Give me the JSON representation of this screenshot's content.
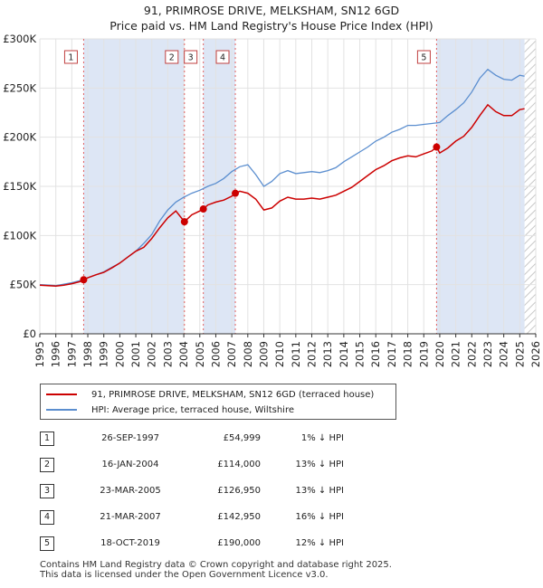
{
  "title_line1": "91, PRIMROSE DRIVE, MELKSHAM, SN12 6GD",
  "title_line2": "Price paid vs. HM Land Registry's House Price Index (HPI)",
  "legend": {
    "property_label": "91, PRIMROSE DRIVE, MELKSHAM, SN12 6GD (terraced house)",
    "hpi_label": "HPI: Average price, terraced house, Wiltshire"
  },
  "colors": {
    "property": "#cc0000",
    "hpi": "#5b8ecf",
    "shade": "#dde6f5",
    "marker_line": "#e06060",
    "hatch": "#c8c8c8"
  },
  "sales": [
    {
      "num": "1",
      "date": "26-SEP-1997",
      "price": "£54,999",
      "hpi": "1% ↓ HPI"
    },
    {
      "num": "2",
      "date": "16-JAN-2004",
      "price": "£114,000",
      "hpi": "13% ↓ HPI"
    },
    {
      "num": "3",
      "date": "23-MAR-2005",
      "price": "£126,950",
      "hpi": "13% ↓ HPI"
    },
    {
      "num": "4",
      "date": "21-MAR-2007",
      "price": "£142,950",
      "hpi": "16% ↓ HPI"
    },
    {
      "num": "5",
      "date": "18-OCT-2019",
      "price": "£190,000",
      "hpi": "12% ↓ HPI"
    }
  ],
  "footer_line1": "Contains HM Land Registry data © Crown copyright and database right 2025.",
  "footer_line2": "This data is licensed under the Open Government Licence v3.0.",
  "chart_data": {
    "type": "line",
    "title": "Price paid vs. HM Land Registry's House Price Index (HPI)",
    "xlim": [
      1995,
      2026
    ],
    "ylim": [
      0,
      300000
    ],
    "x_ticks": [
      1995,
      1996,
      1997,
      1998,
      1999,
      2000,
      2001,
      2002,
      2003,
      2004,
      2005,
      2006,
      2007,
      2008,
      2009,
      2010,
      2011,
      2012,
      2013,
      2014,
      2015,
      2016,
      2017,
      2018,
      2019,
      2020,
      2021,
      2022,
      2023,
      2024,
      2025,
      2026
    ],
    "y_ticks": [
      {
        "value": 0,
        "label": "£0"
      },
      {
        "value": 50000,
        "label": "£50K"
      },
      {
        "value": 100000,
        "label": "£100K"
      },
      {
        "value": 150000,
        "label": "£150K"
      },
      {
        "value": 200000,
        "label": "£200K"
      },
      {
        "value": 250000,
        "label": "£250K"
      },
      {
        "value": 300000,
        "label": "£300K"
      }
    ],
    "sale_points": [
      {
        "label": "1",
        "x": 1997.74,
        "y": 54999
      },
      {
        "label": "2",
        "x": 2004.04,
        "y": 114000
      },
      {
        "label": "3",
        "x": 2005.22,
        "y": 126950
      },
      {
        "label": "4",
        "x": 2007.22,
        "y": 142950
      },
      {
        "label": "5",
        "x": 2019.8,
        "y": 190000
      }
    ],
    "shaded_ranges": [
      [
        1997.74,
        2004.04
      ],
      [
        2005.22,
        2007.22
      ],
      [
        2019.8,
        2025.3
      ]
    ],
    "hatch_from": 2025.3,
    "series": [
      {
        "name": "HPI: Average price, terraced house, Wiltshire",
        "x": [
          1995,
          1995.5,
          1996,
          1996.5,
          1997,
          1997.5,
          1998,
          1998.5,
          1999,
          1999.5,
          2000,
          2000.5,
          2001,
          2001.5,
          2002,
          2002.5,
          2003,
          2003.5,
          2004,
          2004.5,
          2005,
          2005.5,
          2006,
          2006.5,
          2007,
          2007.5,
          2008,
          2008.5,
          2009,
          2009.5,
          2010,
          2010.5,
          2011,
          2011.5,
          2012,
          2012.5,
          2013,
          2013.5,
          2014,
          2014.5,
          2015,
          2015.5,
          2016,
          2016.5,
          2017,
          2017.5,
          2018,
          2018.5,
          2019,
          2019.5,
          2020,
          2020.5,
          2021,
          2021.5,
          2022,
          2022.5,
          2023,
          2023.5,
          2024,
          2024.5,
          2025,
          2025.3
        ],
        "values": [
          50000,
          49500,
          49000,
          50500,
          52000,
          54000,
          57000,
          60000,
          63000,
          67500,
          72000,
          78000,
          84000,
          92000,
          101000,
          115000,
          126000,
          134000,
          139000,
          143000,
          146000,
          150000,
          153000,
          158000,
          165000,
          170000,
          172000,
          162000,
          150000,
          155000,
          163000,
          166000,
          163000,
          164000,
          165000,
          164000,
          166000,
          169000,
          175000,
          180000,
          185000,
          190000,
          196000,
          200000,
          205000,
          208000,
          212000,
          212000,
          213000,
          214000,
          215000,
          222000,
          228000,
          235000,
          246000,
          260000,
          269000,
          263000,
          259000,
          258000,
          263000,
          262000
        ]
      },
      {
        "name": "91, PRIMROSE DRIVE, MELKSHAM, SN12 6GD (terraced house)",
        "x": [
          1995,
          1995.5,
          1996,
          1996.5,
          1997,
          1997.5,
          1997.74,
          1998,
          1998.5,
          1999,
          1999.5,
          2000,
          2000.5,
          2001,
          2001.5,
          2002,
          2002.5,
          2003,
          2003.5,
          2004.04,
          2004.5,
          2005,
          2005.22,
          2005.5,
          2006,
          2006.5,
          2007,
          2007.22,
          2007.5,
          2008,
          2008.5,
          2009,
          2009.5,
          2010,
          2010.5,
          2011,
          2011.5,
          2012,
          2012.5,
          2013,
          2013.5,
          2014,
          2014.5,
          2015,
          2015.5,
          2016,
          2016.5,
          2017,
          2017.5,
          2018,
          2018.5,
          2019,
          2019.5,
          2019.8,
          2020,
          2020.5,
          2021,
          2021.5,
          2022,
          2022.5,
          2023,
          2023.5,
          2024,
          2024.5,
          2025,
          2025.3
        ],
        "values": [
          49500,
          49000,
          48500,
          49500,
          51000,
          53000,
          54999,
          57000,
          60000,
          62500,
          67000,
          72000,
          78000,
          84000,
          88000,
          97000,
          108000,
          118000,
          125000,
          114000,
          121000,
          125000,
          126950,
          131000,
          134000,
          136000,
          140000,
          142950,
          145000,
          143000,
          137000,
          126000,
          128000,
          135000,
          139000,
          137000,
          137000,
          138000,
          137000,
          139000,
          141000,
          145000,
          149000,
          155000,
          161000,
          167000,
          171000,
          176000,
          179000,
          181000,
          180000,
          183000,
          186000,
          190000,
          184000,
          189000,
          196000,
          201000,
          210000,
          222000,
          233000,
          226000,
          222000,
          222000,
          228000,
          229000
        ]
      }
    ]
  }
}
